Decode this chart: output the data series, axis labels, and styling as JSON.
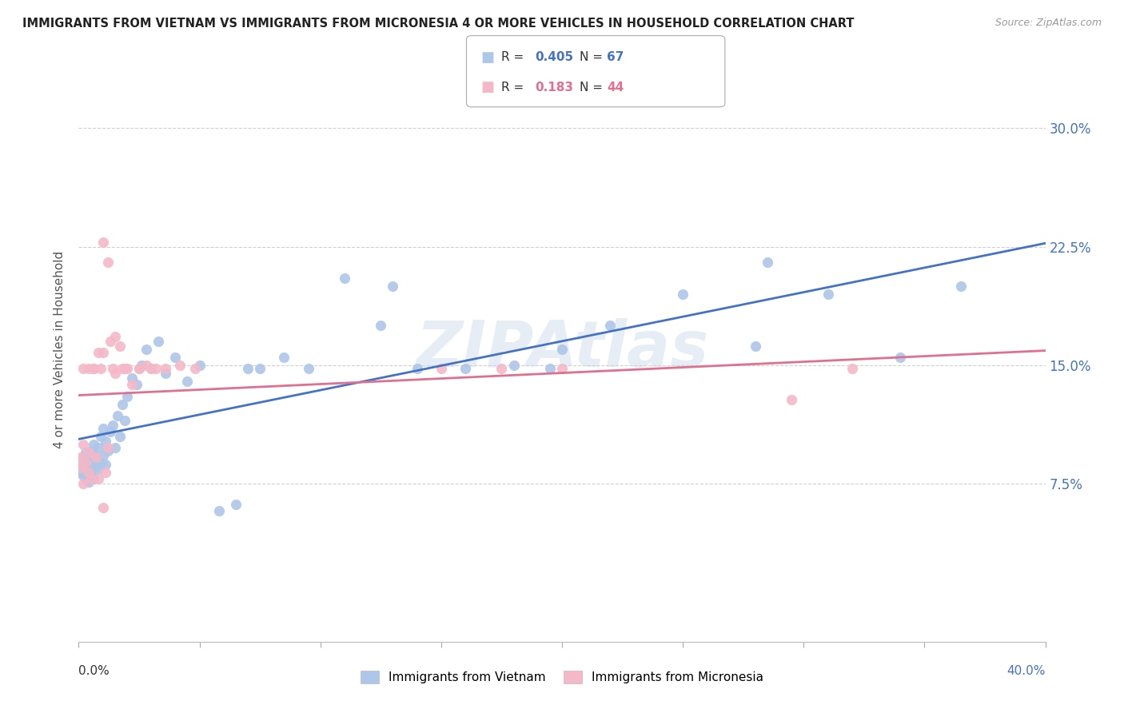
{
  "title": "IMMIGRANTS FROM VIETNAM VS IMMIGRANTS FROM MICRONESIA 4 OR MORE VEHICLES IN HOUSEHOLD CORRELATION CHART",
  "source": "Source: ZipAtlas.com",
  "ylabel": "4 or more Vehicles in Household",
  "yticks": [
    "7.5%",
    "15.0%",
    "22.5%",
    "30.0%"
  ],
  "ytick_values": [
    0.075,
    0.15,
    0.225,
    0.3
  ],
  "xlim": [
    0.0,
    0.4
  ],
  "ylim": [
    -0.025,
    0.345
  ],
  "vietnam_R": 0.405,
  "vietnam_N": 67,
  "micronesia_R": 0.183,
  "micronesia_N": 44,
  "vietnam_color": "#aec6e8",
  "vietnam_line_color": "#4472c4",
  "micronesia_color": "#f4b8c8",
  "micronesia_line_color": "#e07090",
  "watermark": "ZIPAtlas",
  "vietnam_x": [
    0.001,
    0.001,
    0.002,
    0.002,
    0.002,
    0.003,
    0.003,
    0.003,
    0.004,
    0.004,
    0.004,
    0.005,
    0.005,
    0.005,
    0.006,
    0.006,
    0.006,
    0.007,
    0.007,
    0.008,
    0.008,
    0.009,
    0.009,
    0.01,
    0.01,
    0.011,
    0.011,
    0.012,
    0.013,
    0.014,
    0.015,
    0.016,
    0.017,
    0.018,
    0.019,
    0.02,
    0.022,
    0.024,
    0.026,
    0.028,
    0.03,
    0.033,
    0.036,
    0.04,
    0.045,
    0.05,
    0.058,
    0.065,
    0.075,
    0.085,
    0.095,
    0.11,
    0.125,
    0.14,
    0.16,
    0.18,
    0.2,
    0.22,
    0.25,
    0.28,
    0.31,
    0.34,
    0.365,
    0.285,
    0.195,
    0.13,
    0.07
  ],
  "vietnam_y": [
    0.085,
    0.082,
    0.088,
    0.08,
    0.092,
    0.086,
    0.078,
    0.095,
    0.083,
    0.09,
    0.076,
    0.088,
    0.096,
    0.082,
    0.094,
    0.078,
    0.1,
    0.092,
    0.086,
    0.098,
    0.084,
    0.105,
    0.088,
    0.093,
    0.11,
    0.087,
    0.102,
    0.096,
    0.108,
    0.112,
    0.098,
    0.118,
    0.105,
    0.125,
    0.115,
    0.13,
    0.142,
    0.138,
    0.15,
    0.16,
    0.148,
    0.165,
    0.145,
    0.155,
    0.14,
    0.15,
    0.058,
    0.062,
    0.148,
    0.155,
    0.148,
    0.205,
    0.175,
    0.148,
    0.148,
    0.15,
    0.16,
    0.175,
    0.195,
    0.162,
    0.195,
    0.155,
    0.2,
    0.215,
    0.148,
    0.2,
    0.148
  ],
  "micronesia_x": [
    0.001,
    0.001,
    0.002,
    0.002,
    0.003,
    0.004,
    0.004,
    0.005,
    0.006,
    0.007,
    0.008,
    0.009,
    0.01,
    0.011,
    0.012,
    0.013,
    0.015,
    0.017,
    0.019,
    0.022,
    0.025,
    0.028,
    0.032,
    0.036,
    0.042,
    0.048,
    0.01,
    0.012,
    0.015,
    0.018,
    0.008,
    0.006,
    0.004,
    0.002,
    0.014,
    0.02,
    0.025,
    0.03,
    0.15,
    0.175,
    0.2,
    0.295,
    0.32,
    0.01
  ],
  "micronesia_y": [
    0.085,
    0.092,
    0.075,
    0.1,
    0.088,
    0.095,
    0.082,
    0.078,
    0.148,
    0.092,
    0.078,
    0.148,
    0.158,
    0.082,
    0.098,
    0.165,
    0.145,
    0.162,
    0.148,
    0.138,
    0.148,
    0.15,
    0.148,
    0.148,
    0.15,
    0.148,
    0.228,
    0.215,
    0.168,
    0.148,
    0.158,
    0.148,
    0.148,
    0.148,
    0.148,
    0.148,
    0.148,
    0.148,
    0.148,
    0.148,
    0.148,
    0.128,
    0.148,
    0.06
  ]
}
